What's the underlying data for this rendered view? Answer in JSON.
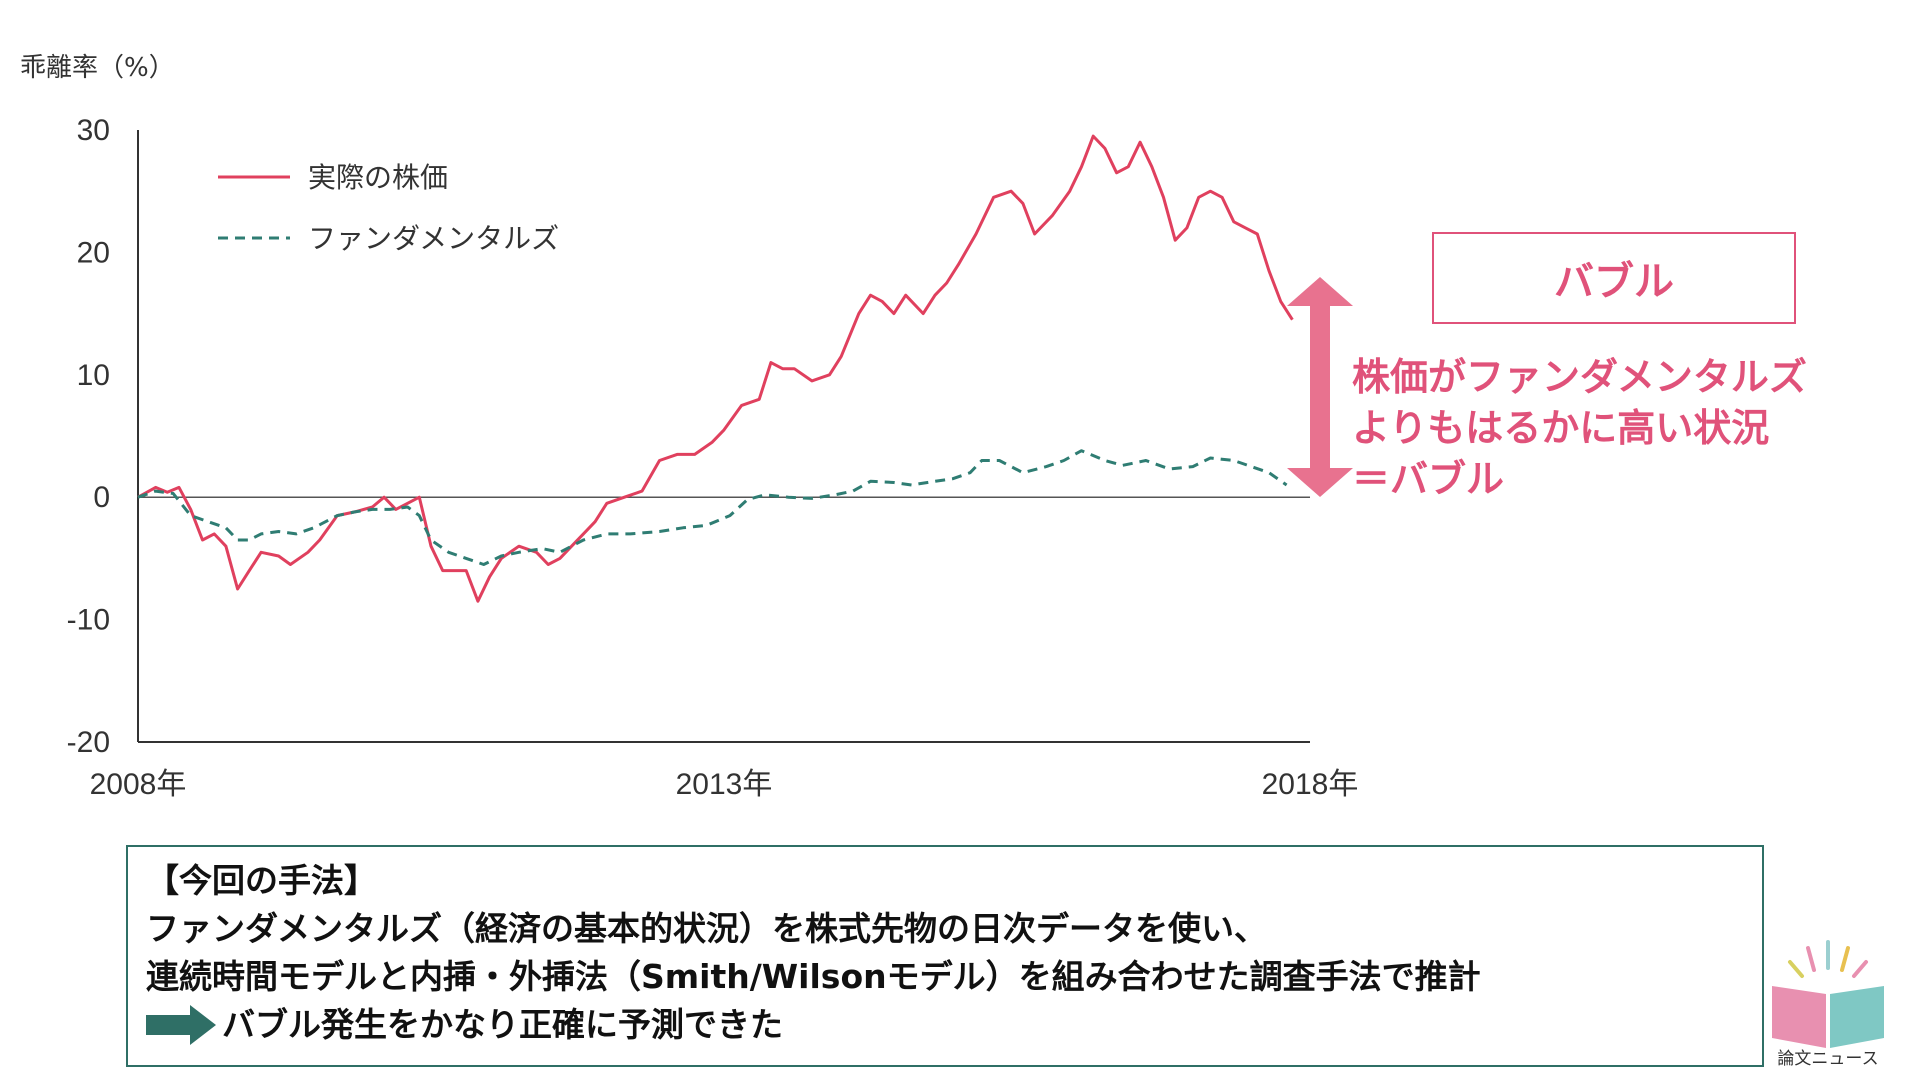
{
  "chart_data": {
    "type": "line",
    "ylabel": "乖離率（%）",
    "ylim": [
      -20,
      30
    ],
    "yticks": [
      30,
      20,
      10,
      0,
      -10,
      -20
    ],
    "xlim": [
      2008,
      2018
    ],
    "xticks": [
      {
        "value": 2008,
        "label": "2008年"
      },
      {
        "value": 2013,
        "label": "2013年"
      },
      {
        "value": 2018,
        "label": "2018年"
      }
    ],
    "legend_position": "top-left",
    "grid": false,
    "series": [
      {
        "name": "実際の株価",
        "color": "#e0405e",
        "style": "solid",
        "points": [
          [
            2008.0,
            0
          ],
          [
            2008.15,
            0.8
          ],
          [
            2008.25,
            0.4
          ],
          [
            2008.35,
            0.8
          ],
          [
            2008.45,
            -1
          ],
          [
            2008.55,
            -3.5
          ],
          [
            2008.65,
            -3
          ],
          [
            2008.75,
            -4
          ],
          [
            2008.85,
            -7.5
          ],
          [
            2008.95,
            -6
          ],
          [
            2009.05,
            -4.5
          ],
          [
            2009.2,
            -4.8
          ],
          [
            2009.3,
            -5.5
          ],
          [
            2009.45,
            -4.5
          ],
          [
            2009.55,
            -3.5
          ],
          [
            2009.7,
            -1.5
          ],
          [
            2009.85,
            -1.2
          ],
          [
            2010.0,
            -0.8
          ],
          [
            2010.1,
            0
          ],
          [
            2010.2,
            -1
          ],
          [
            2010.3,
            -0.5
          ],
          [
            2010.4,
            0
          ],
          [
            2010.5,
            -4
          ],
          [
            2010.6,
            -6
          ],
          [
            2010.8,
            -6
          ],
          [
            2010.9,
            -8.5
          ],
          [
            2011.0,
            -6.5
          ],
          [
            2011.1,
            -5
          ],
          [
            2011.25,
            -4
          ],
          [
            2011.4,
            -4.5
          ],
          [
            2011.5,
            -5.5
          ],
          [
            2011.6,
            -5
          ],
          [
            2011.7,
            -4
          ],
          [
            2011.8,
            -3
          ],
          [
            2011.9,
            -2
          ],
          [
            2012.0,
            -0.5
          ],
          [
            2012.15,
            0
          ],
          [
            2012.3,
            0.5
          ],
          [
            2012.45,
            3
          ],
          [
            2012.6,
            3.5
          ],
          [
            2012.75,
            3.5
          ],
          [
            2012.9,
            4.5
          ],
          [
            2013.0,
            5.5
          ],
          [
            2013.15,
            7.5
          ],
          [
            2013.3,
            8
          ],
          [
            2013.4,
            11
          ],
          [
            2013.5,
            10.5
          ],
          [
            2013.6,
            10.5
          ],
          [
            2013.75,
            9.5
          ],
          [
            2013.9,
            10
          ],
          [
            2014.0,
            11.5
          ],
          [
            2014.15,
            15
          ],
          [
            2014.25,
            16.5
          ],
          [
            2014.35,
            16
          ],
          [
            2014.45,
            15
          ],
          [
            2014.55,
            16.5
          ],
          [
            2014.7,
            15
          ],
          [
            2014.8,
            16.5
          ],
          [
            2014.9,
            17.5
          ],
          [
            2015.0,
            19
          ],
          [
            2015.15,
            21.5
          ],
          [
            2015.3,
            24.5
          ],
          [
            2015.45,
            25
          ],
          [
            2015.55,
            24
          ],
          [
            2015.65,
            21.5
          ],
          [
            2015.8,
            23
          ],
          [
            2015.95,
            25
          ],
          [
            2016.05,
            27
          ],
          [
            2016.15,
            29.5
          ],
          [
            2016.25,
            28.5
          ],
          [
            2016.35,
            26.5
          ],
          [
            2016.45,
            27
          ],
          [
            2016.55,
            29
          ],
          [
            2016.65,
            27
          ],
          [
            2016.75,
            24.5
          ],
          [
            2016.85,
            21
          ],
          [
            2016.95,
            22
          ],
          [
            2017.05,
            24.5
          ],
          [
            2017.15,
            25
          ],
          [
            2017.25,
            24.5
          ],
          [
            2017.35,
            22.5
          ],
          [
            2017.45,
            22
          ],
          [
            2017.55,
            21.5
          ],
          [
            2017.65,
            18.5
          ],
          [
            2017.75,
            16
          ],
          [
            2017.85,
            14.5
          ]
        ]
      },
      {
        "name": "ファンダメンタルズ",
        "color": "#2f7d73",
        "style": "dashed",
        "points": [
          [
            2008.0,
            0
          ],
          [
            2008.15,
            0.5
          ],
          [
            2008.3,
            0.3
          ],
          [
            2008.45,
            -1.5
          ],
          [
            2008.6,
            -2
          ],
          [
            2008.75,
            -2.5
          ],
          [
            2008.85,
            -3.5
          ],
          [
            2008.95,
            -3.5
          ],
          [
            2009.05,
            -3
          ],
          [
            2009.2,
            -2.8
          ],
          [
            2009.35,
            -3
          ],
          [
            2009.5,
            -2.5
          ],
          [
            2009.7,
            -1.5
          ],
          [
            2009.85,
            -1.2
          ],
          [
            2010.0,
            -1
          ],
          [
            2010.15,
            -1
          ],
          [
            2010.3,
            -0.8
          ],
          [
            2010.4,
            -1.5
          ],
          [
            2010.5,
            -3.5
          ],
          [
            2010.65,
            -4.5
          ],
          [
            2010.8,
            -5
          ],
          [
            2010.95,
            -5.5
          ],
          [
            2011.1,
            -4.8
          ],
          [
            2011.25,
            -4.5
          ],
          [
            2011.45,
            -4.2
          ],
          [
            2011.6,
            -4.5
          ],
          [
            2011.8,
            -3.5
          ],
          [
            2012.0,
            -3
          ],
          [
            2012.2,
            -3
          ],
          [
            2012.45,
            -2.8
          ],
          [
            2012.65,
            -2.5
          ],
          [
            2012.85,
            -2.3
          ],
          [
            2013.05,
            -1.5
          ],
          [
            2013.2,
            -0.2
          ],
          [
            2013.35,
            0.2
          ],
          [
            2013.55,
            0
          ],
          [
            2013.75,
            -0.1
          ],
          [
            2013.95,
            0.2
          ],
          [
            2014.1,
            0.5
          ],
          [
            2014.25,
            1.3
          ],
          [
            2014.45,
            1.2
          ],
          [
            2014.6,
            1
          ],
          [
            2014.8,
            1.3
          ],
          [
            2014.95,
            1.5
          ],
          [
            2015.1,
            2
          ],
          [
            2015.2,
            3
          ],
          [
            2015.35,
            3
          ],
          [
            2015.55,
            2
          ],
          [
            2015.75,
            2.5
          ],
          [
            2015.9,
            3
          ],
          [
            2016.05,
            3.8
          ],
          [
            2016.25,
            3
          ],
          [
            2016.4,
            2.6
          ],
          [
            2016.6,
            3
          ],
          [
            2016.8,
            2.3
          ],
          [
            2017.0,
            2.5
          ],
          [
            2017.15,
            3.2
          ],
          [
            2017.35,
            3
          ],
          [
            2017.5,
            2.5
          ],
          [
            2017.65,
            2
          ],
          [
            2017.8,
            1
          ]
        ]
      }
    ]
  },
  "bubble_label": "バブル",
  "annotation": {
    "line1": "株価がファンダメンタルズ",
    "line2": "よりもはるかに高い状況",
    "line3": "＝バブル"
  },
  "method": {
    "title": "【今回の手法】",
    "line1": "ファンダメンタルズ（経済の基本的状況）を株式先物の日次データを使い、",
    "line2": "連続時間モデルと内挿・外挿法（Smith/Wilsonモデル）を組み合わせた調査手法で推計",
    "result": "バブル発生をかなり正確に予測できた"
  },
  "logo": {
    "label": "論文ニュース",
    "icon": "open-book-icon"
  }
}
